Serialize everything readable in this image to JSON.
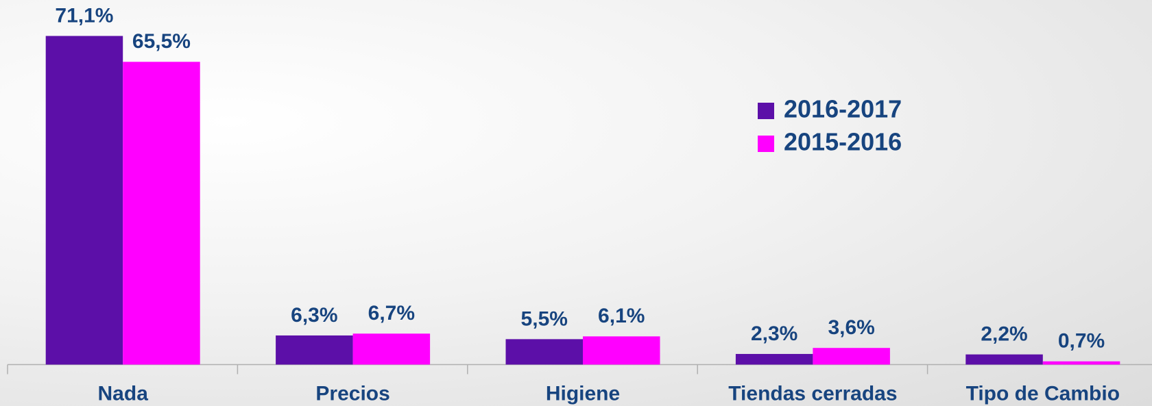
{
  "chart_data": {
    "type": "bar",
    "categories": [
      "Nada",
      "Precios",
      "Higiene",
      "Tiendas cerradas",
      "Tipo de Cambio"
    ],
    "series": [
      {
        "name": "2016-2017",
        "color": "#5c0fa8",
        "values": [
          71.1,
          6.3,
          5.5,
          2.3,
          2.2
        ],
        "value_labels": [
          "71,1%",
          "6,3%",
          "5,5%",
          "2,3%",
          "2,2%"
        ]
      },
      {
        "name": "2015-2016",
        "color": "#ff00ff",
        "values": [
          65.5,
          6.7,
          6.1,
          3.6,
          0.7
        ],
        "value_labels": [
          "65,5%",
          "6,7%",
          "6,1%",
          "3,6%",
          "0,7%"
        ]
      }
    ],
    "legend": "upper right"
  }
}
